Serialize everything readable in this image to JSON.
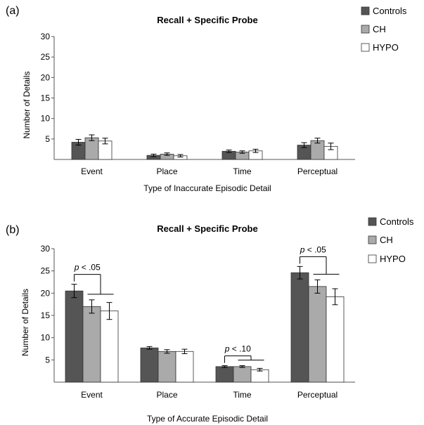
{
  "chart_data": [
    {
      "panel_label": "(a)",
      "type": "bar",
      "title": "Recall + Specific Probe",
      "xlabel": "Type of Inaccurate Episodic Detail",
      "ylabel": "Number of Details",
      "ylim": [
        0,
        30
      ],
      "yticks": [
        "5",
        "10",
        "15",
        "20",
        "25",
        "30"
      ],
      "categories": [
        "Event",
        "Place",
        "Time",
        "Perceptual"
      ],
      "series": [
        {
          "name": "Controls",
          "color": "#555555",
          "values": [
            4.2,
            1.0,
            2.0,
            3.5
          ],
          "errors": [
            0.7,
            0.3,
            0.3,
            0.6
          ]
        },
        {
          "name": "CH",
          "color": "#aaaaaa",
          "values": [
            5.3,
            1.3,
            1.8,
            4.6
          ],
          "errors": [
            0.7,
            0.3,
            0.3,
            0.6
          ]
        },
        {
          "name": "HYPO",
          "color": "#ffffff",
          "values": [
            4.5,
            0.9,
            2.1,
            3.2
          ],
          "errors": [
            0.7,
            0.3,
            0.4,
            0.8
          ]
        }
      ],
      "legend_position": "top-right",
      "significance": []
    },
    {
      "panel_label": "(b)",
      "type": "bar",
      "title": "Recall + Specific Probe",
      "xlabel": "Type of Accurate Episodic Detail",
      "ylabel": "Number of Details",
      "ylim": [
        0,
        30
      ],
      "yticks": [
        "5",
        "10",
        "15",
        "20",
        "25",
        "30"
      ],
      "categories": [
        "Event",
        "Place",
        "Time",
        "Perceptual"
      ],
      "series": [
        {
          "name": "Controls",
          "color": "#555555",
          "values": [
            20.5,
            7.7,
            3.5,
            24.6
          ],
          "errors": [
            1.5,
            0.3,
            0.2,
            1.4
          ]
        },
        {
          "name": "CH",
          "color": "#aaaaaa",
          "values": [
            17.0,
            6.9,
            3.5,
            21.5
          ],
          "errors": [
            1.5,
            0.4,
            0.2,
            1.5
          ]
        },
        {
          "name": "HYPO",
          "color": "#ffffff",
          "values": [
            16.0,
            6.9,
            2.8,
            19.2
          ],
          "errors": [
            1.9,
            0.5,
            0.3,
            1.8
          ]
        }
      ],
      "legend_position": "top-right",
      "significance": [
        {
          "category_index": 0,
          "prefix": "p",
          "suffix": " < .05"
        },
        {
          "category_index": 2,
          "prefix": "p",
          "suffix": " < .10"
        },
        {
          "category_index": 3,
          "prefix": "p",
          "suffix": " < .05"
        }
      ]
    }
  ]
}
